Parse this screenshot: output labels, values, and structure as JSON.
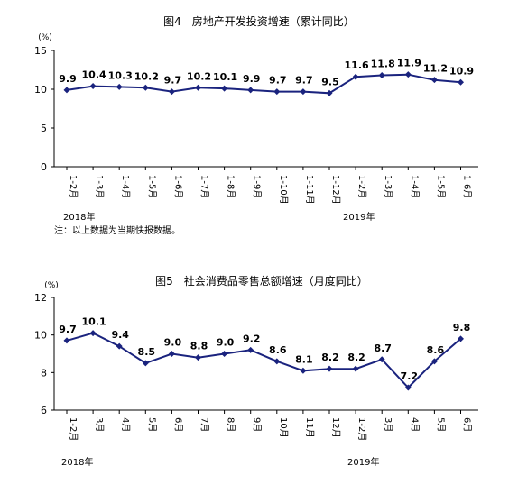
{
  "chart_data": [
    {
      "type": "line",
      "title": "图4　房地产开发投资增速（累计同比）",
      "unit": "(%)",
      "categories": [
        "1-2月",
        "1-3月",
        "1-4月",
        "1-5月",
        "1-6月",
        "1-7月",
        "1-8月",
        "1-9月",
        "1-10月",
        "1-11月",
        "1-12月",
        "1-2月",
        "1-3月",
        "1-4月",
        "1-5月",
        "1-6月"
      ],
      "values": [
        9.9,
        10.4,
        10.3,
        10.2,
        9.7,
        10.2,
        10.1,
        9.9,
        9.7,
        9.7,
        9.5,
        11.6,
        11.8,
        11.9,
        11.2,
        10.9
      ],
      "data_labels": [
        "9.9",
        "10.4",
        "10.3",
        "10.2",
        "9.7",
        "10.2",
        "10.1",
        "9.9",
        "9.7",
        "9.7",
        "9.5",
        "11.6",
        "11.8",
        "11.9",
        "11.2",
        "10.9"
      ],
      "yticks": [
        "0",
        "5",
        "10",
        "15"
      ],
      "ylim": [
        0,
        15
      ],
      "years": [
        "2018年",
        "2019年"
      ],
      "note": "注：以上数据为当期快报数据。",
      "grid": false,
      "color": "#1a237e"
    },
    {
      "type": "line",
      "title": "图5　社会消费品零售总额增速（月度同比）",
      "unit": "(%)",
      "categories": [
        "1-2月",
        "3月",
        "4月",
        "5月",
        "6月",
        "7月",
        "8月",
        "9月",
        "10月",
        "11月",
        "12月",
        "1-2月",
        "3月",
        "4月",
        "5月",
        "6月"
      ],
      "values": [
        9.7,
        10.1,
        9.4,
        8.5,
        9.0,
        8.8,
        9.0,
        9.2,
        8.6,
        8.1,
        8.2,
        8.2,
        8.7,
        7.2,
        8.6,
        9.8
      ],
      "data_labels": [
        "9.7",
        "10.1",
        "9.4",
        "8.5",
        "9.0",
        "8.8",
        "9.0",
        "9.2",
        "8.6",
        "8.1",
        "8.2",
        "8.2",
        "8.7",
        "7.2",
        "8.6",
        "9.8"
      ],
      "yticks": [
        "6",
        "8",
        "10",
        "12"
      ],
      "ylim": [
        6,
        12
      ],
      "years": [
        "2018年",
        "2019年"
      ],
      "grid": false,
      "color": "#1a237e"
    }
  ]
}
